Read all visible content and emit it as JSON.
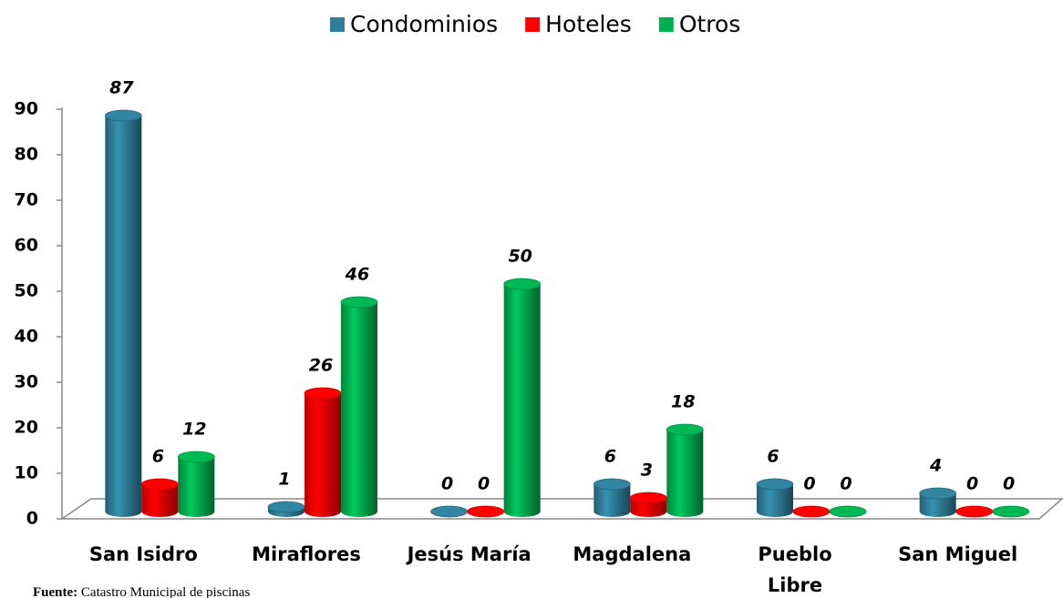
{
  "chart_data": {
    "type": "bar",
    "categories": [
      "San Isidro",
      "Miraflores",
      "Jesús María",
      "Magdalena",
      "Pueblo\nLibre",
      "San Miguel"
    ],
    "series": [
      {
        "name": "Condominios",
        "color": "#2f7f9b",
        "values": [
          87,
          1,
          0,
          6,
          6,
          4
        ]
      },
      {
        "name": "Hoteles",
        "color": "#ff0000",
        "values": [
          6,
          26,
          0,
          3,
          0,
          0
        ]
      },
      {
        "name": "Otros",
        "color": "#00b050",
        "values": [
          12,
          46,
          50,
          18,
          0,
          0
        ]
      }
    ],
    "ylim": [
      0,
      90
    ],
    "yticks": [
      0,
      10,
      20,
      30,
      40,
      50,
      60,
      70,
      80,
      90
    ],
    "legend": "top",
    "source": {
      "label": "Fuente:",
      "text": "Catastro Municipal de piscinas"
    }
  }
}
